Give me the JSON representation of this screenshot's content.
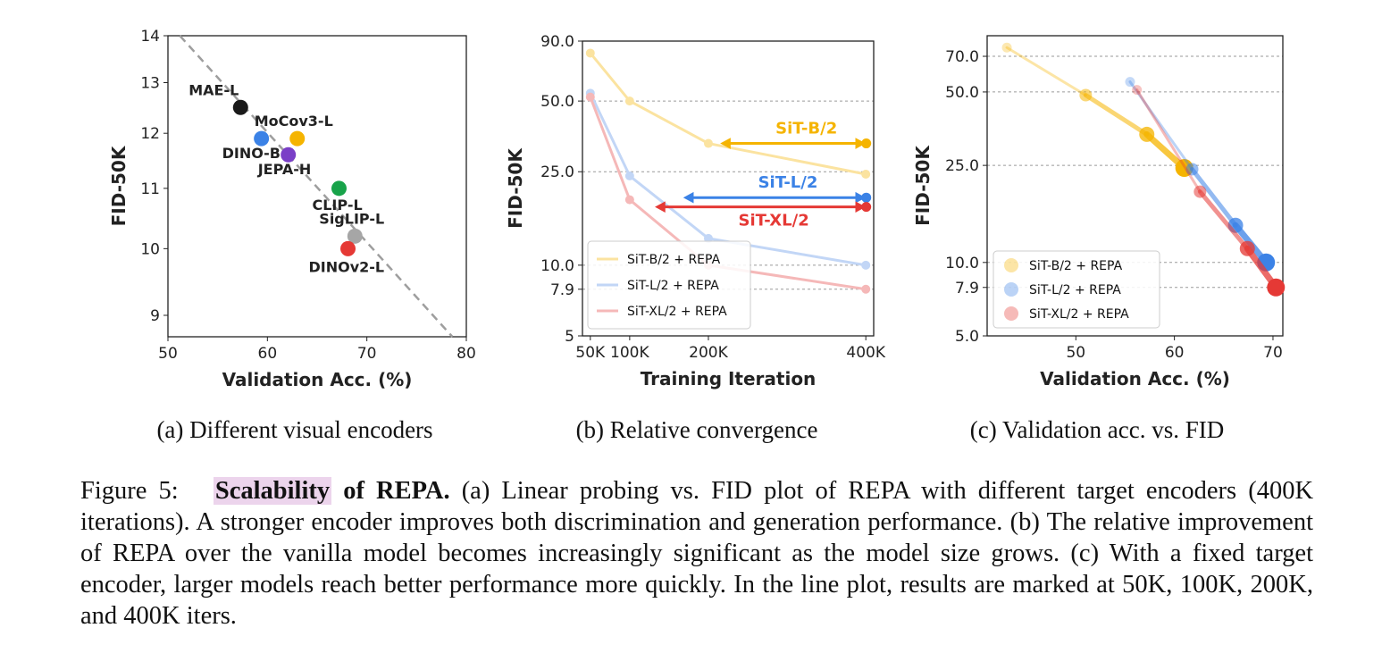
{
  "panels": [
    {
      "id": "a",
      "subcaption": "(a) Different visual encoders",
      "chart_data": {
        "type": "scatter",
        "xlabel": "Validation Acc. (%)",
        "ylabel": "FID-50K",
        "xlim": [
          50,
          80
        ],
        "ylim": [
          8.7,
          14
        ],
        "yscale": "log",
        "xticks": [
          50,
          60,
          70,
          80
        ],
        "yticks": [
          9,
          10,
          11,
          12,
          13,
          14
        ],
        "grid": false,
        "trend_line": {
          "style": "dashed",
          "color": "#9e9e9e",
          "x": [
            51.2,
            78.6
          ],
          "y": [
            14,
            8.7
          ]
        },
        "points": [
          {
            "name": "MAE-L",
            "x": 57.3,
            "y": 12.5,
            "color": "#1a1a1a"
          },
          {
            "name": "MoCov3-L",
            "x": 63.0,
            "y": 11.9,
            "color": "#f5b400"
          },
          {
            "name": "DINO-B",
            "x": 59.4,
            "y": 11.9,
            "color": "#3b82e6"
          },
          {
            "name": "JEPA-H",
            "x": 62.1,
            "y": 11.6,
            "color": "#7a3fc7"
          },
          {
            "name": "CLIP-L",
            "x": 67.2,
            "y": 11.0,
            "color": "#18a34a"
          },
          {
            "name": "SigLIP-L",
            "x": 68.8,
            "y": 10.2,
            "color": "#a6a6a6"
          },
          {
            "name": "DINOv2-L",
            "x": 68.1,
            "y": 10.0,
            "color": "#e53935"
          }
        ]
      }
    },
    {
      "id": "b",
      "subcaption": "(b) Relative convergence",
      "chart_data": {
        "type": "line",
        "xlabel": "Training Iteration",
        "ylabel": "FID-50K",
        "xlim": [
          40000,
          410000
        ],
        "ylim": [
          5,
          90
        ],
        "yscale": "log",
        "xticks": [
          50000,
          100000,
          200000,
          400000
        ],
        "xticklabels": [
          "50K",
          "100K",
          "200K",
          "400K"
        ],
        "yticks": [
          5,
          7.9,
          10,
          25,
          50,
          90
        ],
        "yticklabels": [
          "5",
          "7.9",
          "10.0",
          "25.0",
          "50.0",
          "90.0"
        ],
        "gridlines_y": [
          7.9,
          10,
          25,
          50
        ],
        "grid": "dashed horizontal",
        "x": [
          50000,
          100000,
          200000,
          400000
        ],
        "series": [
          {
            "name": "SiT-B/2 + REPA",
            "values": [
              80,
              50,
              33,
              24.4
            ],
            "color": "#fbe3a0"
          },
          {
            "name": "SiT-L/2 + REPA",
            "values": [
              54,
              24,
              13,
              10
            ],
            "color": "#c2d6f6"
          },
          {
            "name": "SiT-XL/2 + REPA",
            "values": [
              52,
              19,
              10,
              7.9
            ],
            "color": "#f5b8b8"
          }
        ],
        "annotations": [
          {
            "text": "SiT-B/2",
            "x_from": 400000,
            "x_to": 215000,
            "y": 33,
            "color": "#f5b400"
          },
          {
            "text": "SiT-L/2",
            "x_from": 400000,
            "x_to": 168000,
            "y": 19.4,
            "color": "#3b82e6"
          },
          {
            "text": "SiT-XL/2",
            "x_from": 400000,
            "x_to": 132000,
            "y": 17.7,
            "color": "#e53935"
          }
        ],
        "legend": "lower-left"
      }
    },
    {
      "id": "c",
      "subcaption": "(c) Validation acc. vs. FID",
      "chart_data": {
        "type": "scatter",
        "xlabel": "Validation Acc. (%)",
        "ylabel": "FID-50K",
        "xlim": [
          41,
          71
        ],
        "ylim": [
          5,
          85
        ],
        "yscale": "log",
        "xticks": [
          50,
          60,
          70
        ],
        "yticks": [
          5,
          7.9,
          10,
          25,
          50,
          70
        ],
        "yticklabels": [
          "5.0",
          "7.9",
          "10.0",
          "25.0",
          "50.0",
          "70.0"
        ],
        "gridlines_y": [
          7.9,
          10,
          25,
          50,
          70
        ],
        "grid": "dashed horizontal",
        "series": [
          {
            "name": "SiT-B/2 + REPA",
            "color": "#f5b400",
            "points": [
              [
                43,
                76
              ],
              [
                51,
                48.5
              ],
              [
                57.2,
                33.5
              ],
              [
                61.0,
                24.4
              ]
            ]
          },
          {
            "name": "SiT-L/2 + REPA",
            "color": "#3b82e6",
            "points": [
              [
                55.5,
                55
              ],
              [
                61.8,
                24.1
              ],
              [
                66.2,
                14.2
              ],
              [
                69.3,
                10.0
              ]
            ]
          },
          {
            "name": "SiT-XL/2 + REPA",
            "color": "#e53935",
            "points": [
              [
                56.2,
                51
              ],
              [
                62.6,
                19.5
              ],
              [
                67.4,
                11.4
              ],
              [
                70.3,
                7.9
              ]
            ]
          }
        ],
        "legend": "lower-left"
      }
    }
  ],
  "caption": {
    "prefix": "Figure 5:",
    "highlight": "Scalability",
    "bold_rest": " of REPA.",
    "text": " (a) Linear probing vs. FID plot of REPA with different target encoders (400K iterations). A stronger encoder improves both discrimination and generation performance. (b) The relative improvement of REPA over the vanilla model becomes increasingly significant as the model size grows. (c) With a fixed target encoder, larger models reach better performance more quickly. In the line plot, results are marked at 50K, 100K, 200K, and 400K iters."
  }
}
